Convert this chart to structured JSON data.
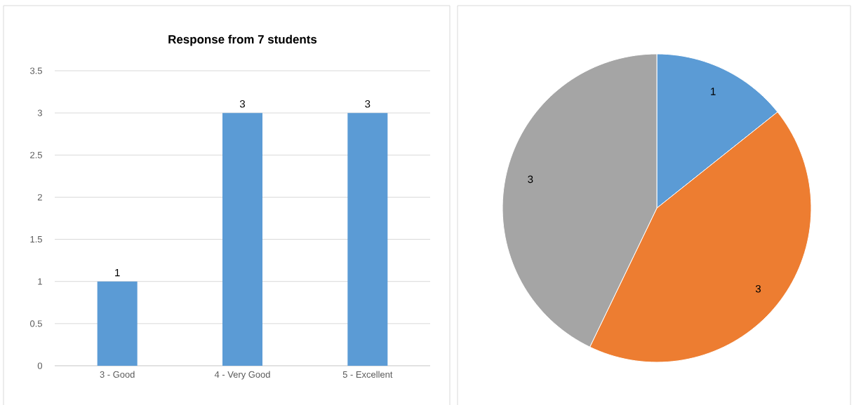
{
  "chart_data": [
    {
      "type": "bar",
      "title": "Response from 7 students",
      "categories": [
        "3 - Good",
        "4 - Very Good",
        "5 - Excellent"
      ],
      "values": [
        1,
        3,
        3
      ],
      "color": "#5b9bd5",
      "ylim": [
        0,
        3.5
      ],
      "yticks": [
        0,
        0.5,
        1,
        1.5,
        2,
        2.5,
        3,
        3.5
      ],
      "grid": "y",
      "data_labels": true
    },
    {
      "type": "pie",
      "categories": [
        null,
        null,
        null
      ],
      "values": [
        1,
        3,
        3
      ],
      "colors": [
        "#5b9bd5",
        "#ed7d31",
        "#a5a5a5"
      ],
      "data_labels": true
    }
  ]
}
